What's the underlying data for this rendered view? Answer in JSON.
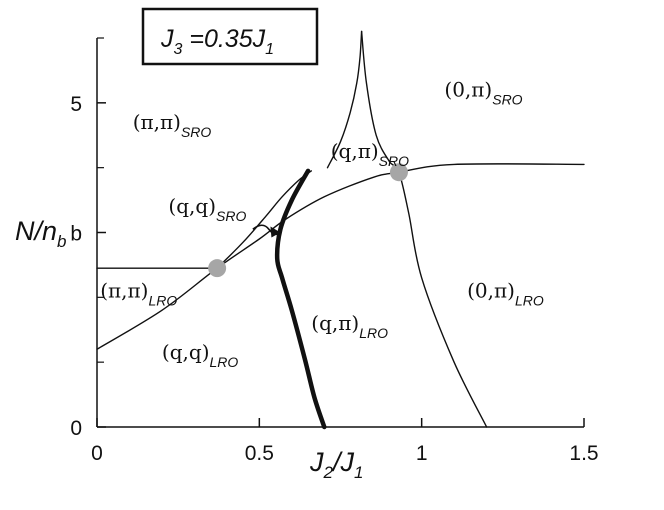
{
  "chart_data": {
    "type": "line",
    "title": "J3 =0.35J1",
    "title_parts": {
      "main": "J",
      "sub1": "3",
      "mid": " =0.35J",
      "sub2": "1"
    },
    "xlabel": "J2/J1",
    "xlabel_parts": {
      "a": "J",
      "a_sub": "2",
      "slash": "/",
      "b": "J",
      "b_sub": "1"
    },
    "ylabel": "N/nb",
    "ylabel_parts": {
      "main": "N/n",
      "sub": "b"
    },
    "xlim": [
      0,
      1.5
    ],
    "ylim": [
      0,
      6
    ],
    "x_ticks": [
      {
        "value": 0,
        "label": "0"
      },
      {
        "value": 0.5,
        "label": "0.5"
      },
      {
        "value": 1,
        "label": "1"
      },
      {
        "value": 1.5,
        "label": "1.5"
      }
    ],
    "y_ticks": [
      {
        "value": 0,
        "label": "0"
      },
      {
        "value": 3,
        "label": "b"
      },
      {
        "value": 5,
        "label": "5"
      }
    ],
    "y_minor_ticks": [
      1,
      2,
      4
    ],
    "grid": false,
    "series": [
      {
        "key": "qq_lro_boundary",
        "style": "thin",
        "x": [
          0,
          0.2,
          0.37,
          0.5,
          0.58,
          0.7,
          0.85,
          0.93,
          1.1,
          1.5
        ],
        "y": [
          1.2,
          1.8,
          2.45,
          2.9,
          3.2,
          3.55,
          3.85,
          3.93,
          4.05,
          4.05
        ]
      },
      {
        "key": "pipi_lro_boundary",
        "style": "thin",
        "x": [
          0,
          0.37
        ],
        "y": [
          2.45,
          2.45
        ]
      },
      {
        "key": "pipi_sro_boundary",
        "style": "thin",
        "x": [
          0.37,
          0.45,
          0.52,
          0.57,
          0.62,
          0.66
        ],
        "y": [
          2.45,
          2.85,
          3.25,
          3.55,
          3.8,
          3.95
        ]
      },
      {
        "key": "qpi_sro_left",
        "style": "thin",
        "x": [
          0.71,
          0.75,
          0.78,
          0.8,
          0.81,
          0.815
        ],
        "y": [
          4.0,
          4.4,
          4.85,
          5.3,
          5.7,
          6.1
        ]
      },
      {
        "key": "qpi_sro_right",
        "style": "thin",
        "x": [
          0.815,
          0.83,
          0.86,
          0.9,
          0.93,
          0.96,
          1.0,
          1.1,
          1.2
        ],
        "y": [
          6.1,
          5.3,
          4.5,
          4.1,
          3.93,
          3.3,
          2.3,
          1.0,
          0.0
        ]
      },
      {
        "key": "qq_qpi_boundary",
        "style": "thick",
        "x": [
          0.65,
          0.6,
          0.565,
          0.555,
          0.57,
          0.6,
          0.64,
          0.67,
          0.7
        ],
        "y": [
          3.95,
          3.5,
          3.05,
          2.6,
          2.3,
          1.8,
          1.05,
          0.45,
          0.0
        ]
      }
    ],
    "annotations": [
      {
        "key": "pipi_sro",
        "main": "(π,π)",
        "sub": "SRO",
        "x": 0.11,
        "y": 4.6
      },
      {
        "key": "zeropi_sro",
        "main": "(0,π)",
        "sub": "SRO",
        "x": 1.07,
        "y": 5.1
      },
      {
        "key": "qpi_sro",
        "main": "(q,π)",
        "sub": "SRO",
        "x": 0.72,
        "y": 4.15
      },
      {
        "key": "qq_sro",
        "main": "(q,q)",
        "sub": "SRO",
        "x": 0.22,
        "y": 3.3
      },
      {
        "key": "pipi_lro",
        "main": "(π,π)",
        "sub": "LRO",
        "x": 0.01,
        "y": 2.0
      },
      {
        "key": "zeropi_lro",
        "main": "(0,π)",
        "sub": "LRO",
        "x": 1.14,
        "y": 2.0
      },
      {
        "key": "qpi_lro",
        "main": "(q,π)",
        "sub": "LRO",
        "x": 0.66,
        "y": 1.5
      },
      {
        "key": "qq_lro",
        "main": "(q,q)",
        "sub": "LRO",
        "x": 0.2,
        "y": 1.05
      }
    ],
    "special_points": [
      {
        "x": 0.37,
        "y": 2.45,
        "color": "#a6a6a6"
      },
      {
        "x": 0.93,
        "y": 3.93,
        "color": "#a6a6a6"
      }
    ],
    "arrow": {
      "from": [
        0.48,
        3.05
      ],
      "to": [
        0.565,
        3.0
      ]
    }
  }
}
